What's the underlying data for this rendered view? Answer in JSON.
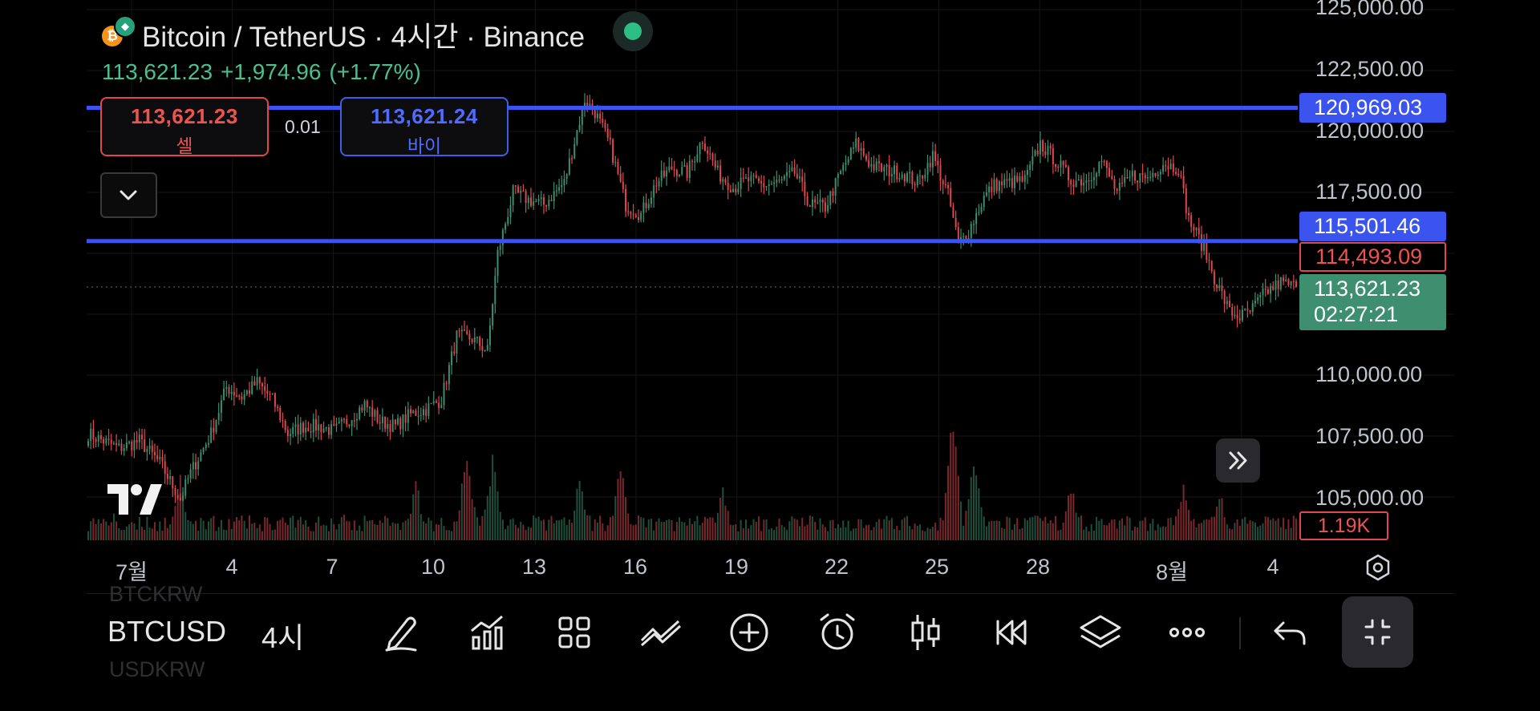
{
  "header": {
    "title": "Bitcoin / TetherUS · 4시간 · Binance",
    "coin_glyph": "₿",
    "quote_glyph": "💎",
    "last_price": "113,621.23",
    "change": "+1,974.96",
    "change_pct": "(+1.77%)"
  },
  "trade": {
    "sell_price": "113,621.23",
    "sell_label": "셀",
    "quantity": "0.01",
    "buy_price": "113,621.24",
    "buy_label": "바이"
  },
  "price_axis": {
    "ticks": [
      "125,000.00",
      "122,500.00",
      "120,000.00",
      "117,500.00",
      "110,000.00",
      "107,500.00",
      "105,000.00"
    ],
    "line_upper": "120,969.03",
    "line_lower": "115,501.46",
    "prev_close": "114,493.09",
    "current_price": "113,621.23",
    "countdown": "02:27:21",
    "volume": "1.19K"
  },
  "time_axis": {
    "ticks": [
      "7월",
      "4",
      "7",
      "10",
      "13",
      "16",
      "19",
      "22",
      "25",
      "28",
      "8월",
      "4"
    ]
  },
  "toolbar": {
    "symbol": "BTCUSD",
    "symbol_above": "BTCKRW",
    "symbol_below": "USDKRW",
    "interval": "4시",
    "icons": [
      "draw-icon",
      "indicators-icon",
      "layout-icon",
      "compare-icon",
      "add-icon",
      "alert-icon",
      "candles-icon",
      "replay-icon",
      "layers-icon",
      "more-icon",
      "undo-icon",
      "exit-fullscreen-icon"
    ]
  },
  "colors": {
    "up": "#3d8f70",
    "down": "#e0474f",
    "horizontal_line": "#3b54f0",
    "background": "#000000"
  },
  "chart_data": {
    "type": "candlestick",
    "symbol": "BTCUSDT",
    "interval": "4시간",
    "exchange": "Binance",
    "ylim": [
      103400,
      125200
    ],
    "horizontal_lines": [
      120969.03,
      115501.46
    ],
    "current_price": 113621.23,
    "close_path": [
      [
        0,
        107600
      ],
      [
        12,
        107000
      ],
      [
        20,
        107300
      ],
      [
        28,
        106400
      ],
      [
        36,
        104900
      ],
      [
        40,
        106000
      ],
      [
        48,
        107600
      ],
      [
        54,
        109500
      ],
      [
        60,
        109100
      ],
      [
        66,
        109700
      ],
      [
        72,
        109000
      ],
      [
        78,
        107600
      ],
      [
        84,
        107900
      ],
      [
        90,
        107900
      ],
      [
        96,
        107700
      ],
      [
        102,
        108200
      ],
      [
        108,
        108800
      ],
      [
        114,
        108100
      ],
      [
        120,
        107900
      ],
      [
        126,
        108400
      ],
      [
        132,
        108600
      ],
      [
        138,
        109000
      ],
      [
        144,
        111600
      ],
      [
        150,
        111500
      ],
      [
        156,
        111000
      ],
      [
        160,
        115000
      ],
      [
        166,
        117500
      ],
      [
        172,
        117200
      ],
      [
        178,
        117000
      ],
      [
        186,
        117900
      ],
      [
        194,
        121300
      ],
      [
        198,
        120800
      ],
      [
        204,
        119400
      ],
      [
        210,
        117000
      ],
      [
        216,
        116600
      ],
      [
        222,
        117900
      ],
      [
        228,
        118500
      ],
      [
        234,
        118300
      ],
      [
        240,
        119700
      ],
      [
        246,
        118300
      ],
      [
        252,
        117700
      ],
      [
        258,
        118000
      ],
      [
        264,
        117800
      ],
      [
        270,
        117900
      ],
      [
        276,
        118300
      ],
      [
        282,
        117000
      ],
      [
        288,
        116900
      ],
      [
        294,
        118300
      ],
      [
        300,
        119500
      ],
      [
        306,
        118600
      ],
      [
        312,
        118400
      ],
      [
        318,
        118300
      ],
      [
        324,
        117900
      ],
      [
        330,
        119000
      ],
      [
        336,
        117400
      ],
      [
        340,
        115400
      ],
      [
        344,
        115900
      ],
      [
        350,
        117300
      ],
      [
        354,
        117800
      ],
      [
        360,
        117900
      ],
      [
        366,
        118000
      ],
      [
        372,
        119500
      ],
      [
        378,
        118800
      ],
      [
        384,
        118000
      ],
      [
        390,
        118000
      ],
      [
        396,
        118800
      ],
      [
        402,
        117500
      ],
      [
        408,
        118200
      ],
      [
        414,
        118100
      ],
      [
        420,
        118700
      ],
      [
        426,
        118500
      ],
      [
        430,
        116400
      ],
      [
        436,
        115200
      ],
      [
        440,
        114000
      ],
      [
        446,
        112600
      ],
      [
        450,
        112400
      ],
      [
        454,
        112600
      ],
      [
        460,
        113400
      ],
      [
        466,
        113800
      ],
      [
        472,
        113621.23
      ]
    ],
    "volume_peaks": [
      [
        10,
        1200
      ],
      [
        36,
        2800
      ],
      [
        100,
        1300
      ],
      [
        128,
        2600
      ],
      [
        148,
        4100
      ],
      [
        158,
        3800
      ],
      [
        192,
        2900
      ],
      [
        208,
        3700
      ],
      [
        248,
        2200
      ],
      [
        338,
        5600
      ],
      [
        346,
        3900
      ],
      [
        384,
        2400
      ],
      [
        428,
        2300
      ],
      [
        442,
        2200
      ],
      [
        472,
        1190
      ]
    ]
  }
}
